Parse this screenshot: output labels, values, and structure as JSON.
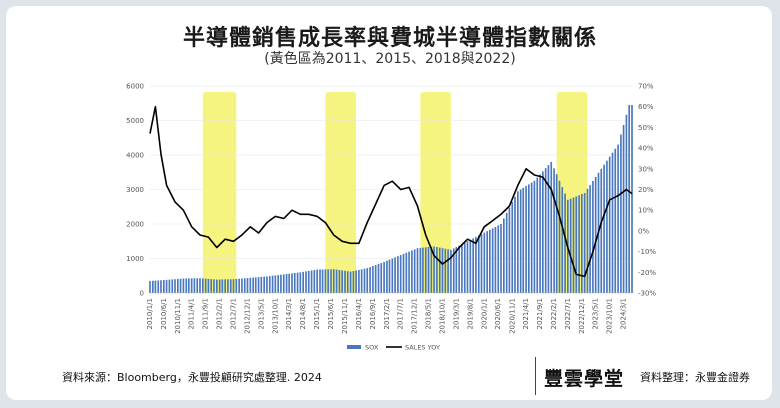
{
  "header": {
    "title": "半導體銷售成長率與費城半導體指數關係",
    "subtitle": "(黃色區為2011、2015、2018與2022)"
  },
  "footer": {
    "source_left": "資料來源：Bloomberg，永豐投顧研究處整理. 2024",
    "brand": "豐雲學堂",
    "source_right": "資料整理：永豐金證券"
  },
  "colors": {
    "bar": "#4a78bf",
    "line": "#000000",
    "highlight": "#f5f26a"
  },
  "chart_data": {
    "type": "bar",
    "x_tick_labels": [
      "2010/1/1",
      "2010/6/1",
      "2010/11/1",
      "2011/4/1",
      "2011/9/1",
      "2012/2/1",
      "2012/7/1",
      "2012/12/1",
      "2013/5/1",
      "2013/10/1",
      "2014/3/1",
      "2014/8/1",
      "2015/1/1",
      "2015/6/1",
      "2015/11/1",
      "2016/4/1",
      "2016/9/1",
      "2017/2/1",
      "2017/7/1",
      "2017/12/1",
      "2018/5/1",
      "2018/10/1",
      "2019/3/1",
      "2019/8/1",
      "2020/1/1",
      "2020/6/1",
      "2020/11/1",
      "2021/4/1",
      "2021/9/1",
      "2022/2/1",
      "2022/7/1",
      "2022/12/1",
      "2023/5/1",
      "2023/10/1",
      "2024/3/1"
    ],
    "y_left": {
      "lim": [
        0,
        6000
      ],
      "ticks": [
        "0",
        "1000",
        "2000",
        "3000",
        "4000",
        "5000",
        "6000"
      ]
    },
    "y_right": {
      "lim": [
        -30,
        70
      ],
      "ticks": [
        "-30%",
        "-20%",
        "-10%",
        "0%",
        "10%",
        "20%",
        "30%",
        "40%",
        "50%",
        "60%",
        "70%"
      ]
    },
    "highlight_periods": [
      {
        "start": "2011/8/1",
        "end": "2012/8/1"
      },
      {
        "start": "2015/4/1",
        "end": "2016/3/1"
      },
      {
        "start": "2018/2/1",
        "end": "2019/1/1"
      },
      {
        "start": "2022/3/1",
        "end": "2023/2/1"
      }
    ],
    "series": [
      {
        "name": "SOX",
        "type": "bar",
        "axis": "left",
        "x": [
          "2010/1/1",
          "2010/7/1",
          "2011/1/1",
          "2011/7/1",
          "2012/1/1",
          "2012/7/1",
          "2013/1/1",
          "2013/7/1",
          "2014/1/1",
          "2014/7/1",
          "2015/1/1",
          "2015/7/1",
          "2016/1/1",
          "2016/7/1",
          "2017/1/1",
          "2017/7/1",
          "2018/1/1",
          "2018/7/1",
          "2019/1/1",
          "2019/7/1",
          "2020/1/1",
          "2020/7/1",
          "2021/1/1",
          "2021/7/1",
          "2022/1/1",
          "2022/7/1",
          "2023/1/1",
          "2023/7/1",
          "2024/1/1",
          "2024/5/1"
        ],
        "values": [
          350,
          380,
          420,
          430,
          390,
          400,
          440,
          480,
          540,
          600,
          680,
          690,
          620,
          720,
          900,
          1100,
          1300,
          1350,
          1250,
          1500,
          1750,
          2000,
          2950,
          3250,
          3800,
          2700,
          2900,
          3600,
          4300,
          5450
        ]
      },
      {
        "name": "SALES YOY",
        "type": "line",
        "axis": "right",
        "x": [
          "2010/1/1",
          "2010/3/1",
          "2010/5/1",
          "2010/7/1",
          "2010/10/1",
          "2011/1/1",
          "2011/4/1",
          "2011/7/1",
          "2011/10/1",
          "2012/1/1",
          "2012/4/1",
          "2012/7/1",
          "2012/10/1",
          "2013/1/1",
          "2013/4/1",
          "2013/7/1",
          "2013/10/1",
          "2014/1/1",
          "2014/4/1",
          "2014/7/1",
          "2014/10/1",
          "2015/1/1",
          "2015/4/1",
          "2015/7/1",
          "2015/10/1",
          "2016/1/1",
          "2016/4/1",
          "2016/7/1",
          "2016/10/1",
          "2017/1/1",
          "2017/4/1",
          "2017/7/1",
          "2017/10/1",
          "2018/1/1",
          "2018/4/1",
          "2018/7/1",
          "2018/10/1",
          "2019/1/1",
          "2019/4/1",
          "2019/7/1",
          "2019/10/1",
          "2020/1/1",
          "2020/4/1",
          "2020/7/1",
          "2020/10/1",
          "2021/1/1",
          "2021/4/1",
          "2021/7/1",
          "2021/10/1",
          "2022/1/1",
          "2022/4/1",
          "2022/7/1",
          "2022/10/1",
          "2023/1/1",
          "2023/4/1",
          "2023/7/1",
          "2023/10/1",
          "2024/1/1",
          "2024/4/1",
          "2024/6/1"
        ],
        "values": [
          47,
          60,
          37,
          22,
          14,
          10,
          2,
          -2,
          -3,
          -8,
          -4,
          -5,
          -2,
          2,
          -1,
          4,
          7,
          6,
          10,
          8,
          8,
          7,
          4,
          -2,
          -5,
          -6,
          -6,
          4,
          13,
          22,
          24,
          20,
          21,
          12,
          -2,
          -12,
          -16,
          -13,
          -8,
          -4,
          -6,
          2,
          5,
          8,
          12,
          22,
          30,
          27,
          26,
          20,
          7,
          -8,
          -21,
          -22,
          -10,
          4,
          15,
          17,
          20,
          18
        ]
      }
    ]
  }
}
